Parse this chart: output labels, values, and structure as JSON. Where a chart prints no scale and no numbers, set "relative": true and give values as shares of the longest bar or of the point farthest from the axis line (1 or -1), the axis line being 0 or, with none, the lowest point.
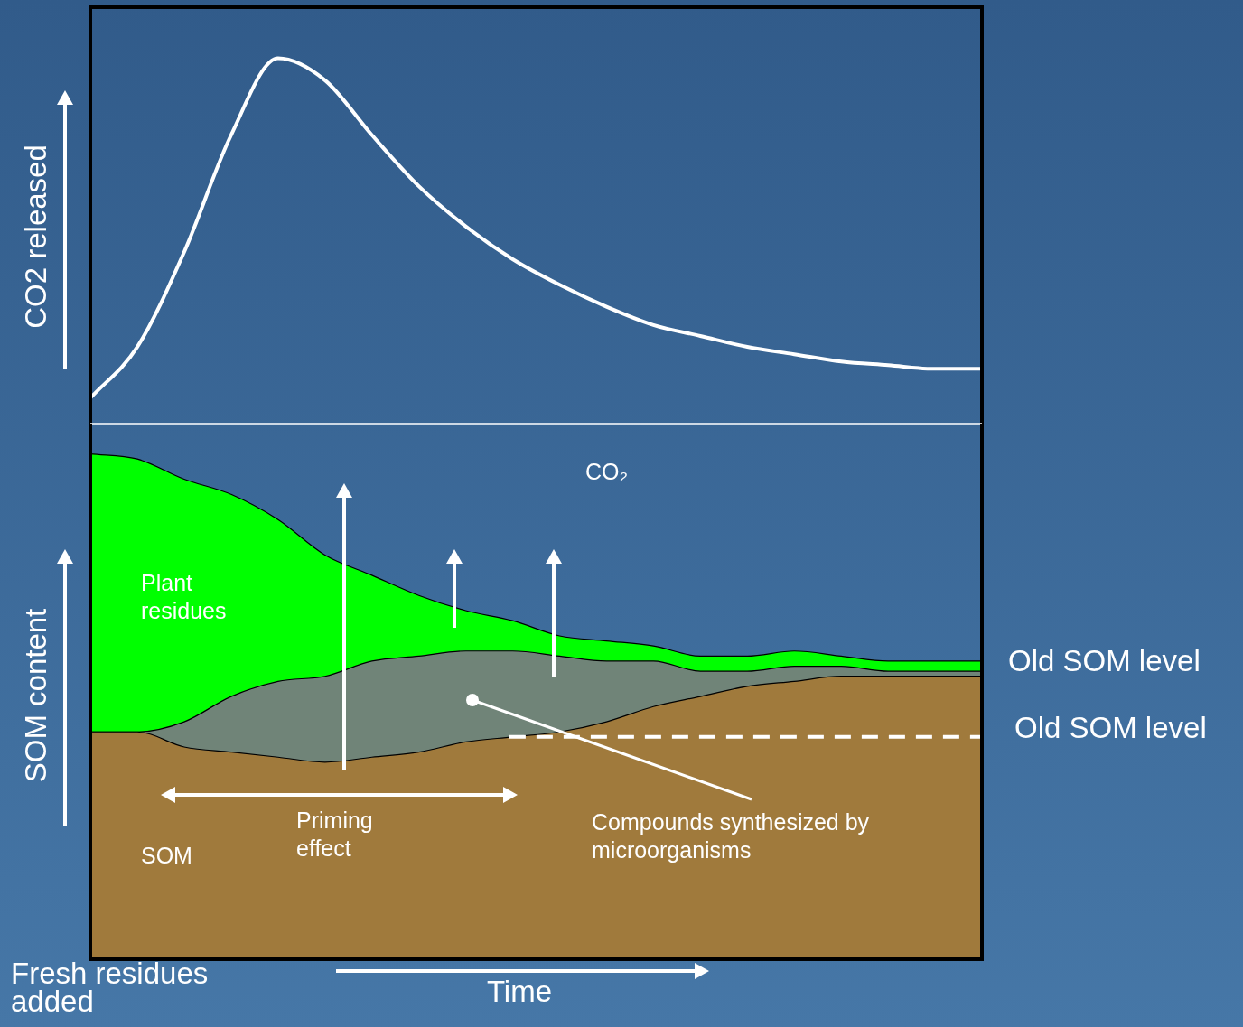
{
  "chart_data": [
    {
      "type": "line",
      "ylabel": "CO2 released",
      "relative": true,
      "categories": [
        null,
        null,
        null,
        null,
        null,
        null,
        null,
        null,
        null,
        null,
        null,
        null,
        null,
        null,
        null,
        null,
        null,
        null,
        null,
        null
      ],
      "series": [
        {
          "color": "#ffffff",
          "values": [
            0.07,
            0.21,
            0.47,
            0.79,
            1,
            0.94,
            0.79,
            0.65,
            0.54,
            0.45,
            0.38,
            0.32,
            0.27,
            0.24,
            0.21,
            0.19,
            0.17,
            0.16,
            0.15,
            0.15
          ]
        }
      ]
    },
    {
      "type": "area",
      "stacked": true,
      "relative": true,
      "ylabel": "SOM content",
      "xlabel": "Time",
      "categories": [
        null,
        null,
        null,
        null,
        null,
        null,
        null,
        null,
        null,
        null,
        null,
        null,
        null,
        null,
        null,
        null,
        null,
        null,
        null,
        null
      ],
      "series": [
        {
          "name": "SOM",
          "color": "#a07a3c",
          "values": [
            0.45,
            0.45,
            0.42,
            0.41,
            0.4,
            0.39,
            0.4,
            0.41,
            0.43,
            0.44,
            0.45,
            0.47,
            0.5,
            0.52,
            0.54,
            0.55,
            0.56,
            0.56,
            0.56,
            0.56
          ]
        },
        {
          "name": "Compounds synthesized by microorganisms",
          "color": "#708478",
          "values": [
            0,
            0,
            0.05,
            0.11,
            0.15,
            0.17,
            0.19,
            0.19,
            0.18,
            0.17,
            0.15,
            0.12,
            0.09,
            0.05,
            0.03,
            0.03,
            0.02,
            0.01,
            0.01,
            0.01
          ]
        },
        {
          "name": "Plant residues",
          "color": "#00ff00",
          "values": [
            0.55,
            0.54,
            0.48,
            0.4,
            0.32,
            0.24,
            0.17,
            0.12,
            0.08,
            0.06,
            0.04,
            0.04,
            0.03,
            0.03,
            0.03,
            0.03,
            0.02,
            0.02,
            0.02,
            0.02
          ]
        }
      ],
      "ref_lines": [
        {
          "axis": "y",
          "value": 0.44,
          "label": "Old SOM level",
          "line_style": "dashed",
          "color": "#ffffff"
        }
      ],
      "annotations": [
        "CO₂",
        "Priming effect",
        "Old SOM level",
        "Fresh residues added"
      ]
    }
  ]
}
